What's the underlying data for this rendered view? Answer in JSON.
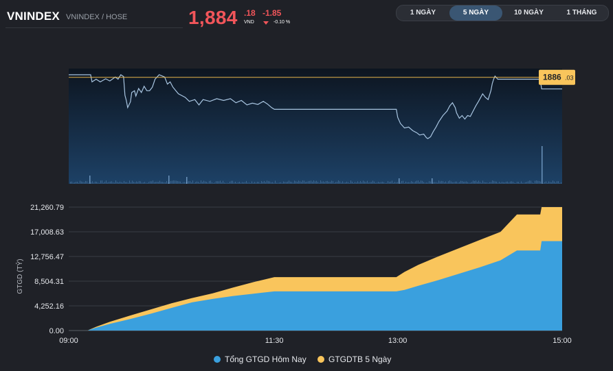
{
  "header": {
    "ticker": "VNINDEX",
    "ticker_sub": "VNINDEX / HOSE",
    "price_main": "1,884",
    "price_dec": ".18",
    "price_unit": "VND",
    "change": "-1.85",
    "change_pct": "-0.10 %"
  },
  "range_tabs": [
    {
      "label": "1 NGÀY",
      "active": false
    },
    {
      "label": "5 NGÀY",
      "active": true
    },
    {
      "label": "10 NGÀY",
      "active": false
    },
    {
      "label": "1 THÁNG",
      "active": false
    }
  ],
  "colors": {
    "price_line": "#a9c6e2",
    "reference_line": "#e7b44a",
    "series_today": "#3aa0de",
    "series_avg": "#f9c55c",
    "negative": "#f2555a"
  },
  "chart_data": [
    {
      "type": "line",
      "reference": {
        "value": 1886.03,
        "label_main": "1886",
        "label_dec": ".03"
      },
      "ylim": [
        1862,
        1888
      ],
      "xlim": [
        0,
        360
      ],
      "points": [
        [
          0,
          1886.6
        ],
        [
          16,
          1886.6
        ],
        [
          17,
          1885.0
        ],
        [
          20,
          1885.6
        ],
        [
          23,
          1885.0
        ],
        [
          27,
          1885.7
        ],
        [
          30,
          1885.2
        ],
        [
          34,
          1886.1
        ],
        [
          36,
          1885.6
        ],
        [
          38,
          1886.6
        ],
        [
          40,
          1886.2
        ],
        [
          41,
          1882.0
        ],
        [
          42,
          1880.8
        ],
        [
          43,
          1879.2
        ],
        [
          45,
          1880.5
        ],
        [
          46,
          1882.6
        ],
        [
          48,
          1883.0
        ],
        [
          49,
          1881.8
        ],
        [
          51,
          1883.5
        ],
        [
          53,
          1882.6
        ],
        [
          55,
          1884.0
        ],
        [
          57,
          1883.0
        ],
        [
          59,
          1883.0
        ],
        [
          61,
          1883.8
        ],
        [
          63,
          1885.6
        ],
        [
          66,
          1886.6
        ],
        [
          70,
          1886.1
        ],
        [
          72,
          1884.5
        ],
        [
          74,
          1885.0
        ],
        [
          76,
          1883.8
        ],
        [
          80,
          1882.3
        ],
        [
          85,
          1881.5
        ],
        [
          88,
          1880.6
        ],
        [
          92,
          1881.0
        ],
        [
          95,
          1879.8
        ],
        [
          98,
          1881.0
        ],
        [
          103,
          1880.6
        ],
        [
          108,
          1881.2
        ],
        [
          113,
          1880.8
        ],
        [
          118,
          1881.2
        ],
        [
          122,
          1880.3
        ],
        [
          126,
          1880.8
        ],
        [
          130,
          1879.8
        ],
        [
          134,
          1880.2
        ],
        [
          138,
          1879.9
        ],
        [
          142,
          1880.6
        ],
        [
          145,
          1880.0
        ],
        [
          148,
          1879.2
        ],
        [
          150,
          1878.8
        ],
        [
          158,
          1878.8
        ],
        [
          170,
          1878.8
        ],
        [
          190,
          1878.8
        ],
        [
          210,
          1878.8
        ],
        [
          239,
          1878.8
        ],
        [
          240,
          1877.0
        ],
        [
          242,
          1875.6
        ],
        [
          245,
          1874.6
        ],
        [
          248,
          1874.8
        ],
        [
          251,
          1874.0
        ],
        [
          254,
          1873.5
        ],
        [
          256,
          1873.0
        ],
        [
          259,
          1873.2
        ],
        [
          261,
          1872.4
        ],
        [
          262,
          1872.2
        ],
        [
          264,
          1872.6
        ],
        [
          266,
          1873.8
        ],
        [
          268,
          1874.8
        ],
        [
          270,
          1876.0
        ],
        [
          273,
          1877.4
        ],
        [
          276,
          1878.4
        ],
        [
          278,
          1879.6
        ],
        [
          280,
          1880.3
        ],
        [
          282,
          1879.2
        ],
        [
          283,
          1878.0
        ],
        [
          285,
          1876.8
        ],
        [
          287,
          1877.4
        ],
        [
          289,
          1876.6
        ],
        [
          291,
          1877.4
        ],
        [
          293,
          1877.2
        ],
        [
          295,
          1878.4
        ],
        [
          297,
          1879.6
        ],
        [
          299,
          1880.6
        ],
        [
          302,
          1882.3
        ],
        [
          304,
          1881.5
        ],
        [
          306,
          1881.0
        ],
        [
          308,
          1883.0
        ],
        [
          309,
          1884.6
        ],
        [
          310,
          1885.6
        ],
        [
          311,
          1886.3
        ],
        [
          313,
          1885.6
        ],
        [
          315,
          1885.6
        ],
        [
          325,
          1885.6
        ],
        [
          344,
          1885.6
        ],
        [
          345,
          1883.4
        ],
        [
          360,
          1883.4
        ]
      ]
    },
    {
      "type": "area",
      "ylabel": "GTGD (TỶ)",
      "ylim": [
        0,
        21260.79
      ],
      "y_ticks": [
        "0.00",
        "4,252.16",
        "8,504.31",
        "12,756.47",
        "17,008.63",
        "21,260.79"
      ],
      "x_ticks": [
        {
          "x": 0,
          "label": "09:00"
        },
        {
          "x": 150,
          "label": "11:30"
        },
        {
          "x": 240,
          "label": "13:00"
        },
        {
          "x": 360,
          "label": "15:00"
        }
      ],
      "series": [
        {
          "name": "Tổng GTGD Hôm Nay",
          "x": [
            0,
            14,
            15,
            20,
            30,
            45,
            60,
            75,
            90,
            105,
            120,
            135,
            150,
            180,
            220,
            239,
            245,
            255,
            270,
            285,
            300,
            315,
            327,
            344,
            345,
            360
          ],
          "values": [
            0,
            0,
            120,
            500,
            1150,
            2000,
            2900,
            3900,
            4850,
            5450,
            5950,
            6350,
            6750,
            6750,
            6750,
            6750,
            7000,
            7700,
            8700,
            9800,
            10900,
            12100,
            13800,
            13800,
            15400,
            15400
          ]
        },
        {
          "name": "GTGDTB 5 Ngày",
          "x": [
            0,
            14,
            15,
            20,
            30,
            45,
            60,
            75,
            90,
            105,
            120,
            135,
            150,
            180,
            220,
            239,
            245,
            255,
            270,
            285,
            300,
            315,
            327,
            344,
            345,
            360
          ],
          "values": [
            0,
            0,
            150,
            650,
            1500,
            2600,
            3650,
            4700,
            5600,
            6400,
            7400,
            8350,
            9200,
            9200,
            9200,
            9200,
            10100,
            11300,
            12800,
            14200,
            15600,
            17000,
            20000,
            20000,
            21260.79,
            21260.79
          ]
        }
      ]
    }
  ]
}
